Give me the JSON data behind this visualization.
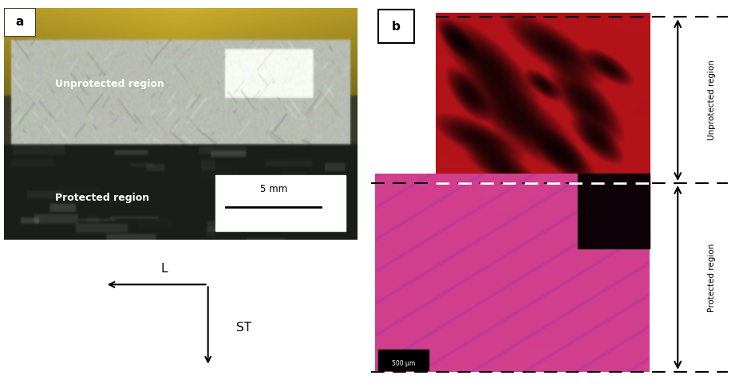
{
  "fig_width": 9.21,
  "fig_height": 4.86,
  "dpi": 100,
  "panel_a_label": "a",
  "panel_b_label": "b",
  "scale_bar_text": "5 mm",
  "scale_bar_500": "500 μm",
  "unprotected_label": "Unprotected region",
  "protected_label": "Protected region",
  "arrow_L_label": "L",
  "arrow_ST_label": "ST",
  "bg_color": "#ffffff"
}
